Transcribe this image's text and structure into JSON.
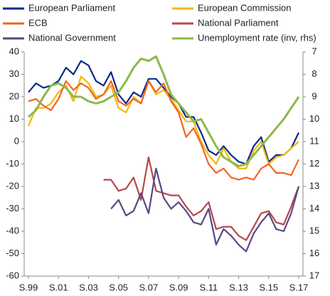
{
  "chart_data": {
    "type": "line",
    "categories": [
      "S.99",
      null,
      null,
      null,
      "S.01",
      null,
      null,
      null,
      "S.03",
      null,
      null,
      null,
      "S.05",
      null,
      null,
      null,
      "S.07",
      null,
      null,
      null,
      "S.09",
      null,
      null,
      null,
      "S.11",
      null,
      null,
      null,
      "S.13",
      null,
      null,
      null,
      "S.15",
      null,
      null,
      null,
      "S.17"
    ],
    "ylim": [
      -60,
      40
    ],
    "yticks": [
      -60,
      -50,
      -40,
      -30,
      -20,
      -10,
      0,
      10,
      20,
      30,
      40
    ],
    "y2lim": [
      17,
      7
    ],
    "y2ticks": [
      7,
      8,
      9,
      10,
      11,
      12,
      13,
      14,
      15,
      16,
      17
    ],
    "series": [
      {
        "name": "European Parliament",
        "color": "#0b2a8c",
        "values": [
          22,
          26,
          24,
          25,
          27,
          33,
          30,
          36,
          34,
          27,
          25,
          31,
          21,
          17,
          22,
          20,
          28,
          28,
          24,
          20,
          17,
          11,
          11,
          4,
          -4,
          -6,
          -2,
          -6,
          -9,
          -10,
          -2,
          2,
          -9,
          -6,
          -6,
          -3,
          4
        ]
      },
      {
        "name": "European Commission",
        "color": "#f5b800",
        "values": [
          7,
          15,
          15,
          17,
          22,
          25,
          18,
          29,
          26,
          20,
          21,
          25,
          15,
          13,
          20,
          17,
          27,
          21,
          23,
          19,
          14,
          9,
          9,
          0,
          -6,
          -10,
          -3,
          -9,
          -12,
          -12,
          -4,
          0,
          -10,
          -7,
          -6,
          -3,
          0
        ]
      },
      {
        "name": "ECB",
        "color": "#f26522",
        "values": [
          18,
          19,
          16,
          14,
          19,
          27,
          23,
          26,
          24,
          19,
          21,
          27,
          18,
          16,
          19,
          17,
          27,
          22,
          26,
          18,
          13,
          2,
          6,
          -1,
          -10,
          -14,
          -12,
          -16,
          -17,
          -16,
          -17,
          -12,
          -10,
          -14,
          -14,
          -15,
          -8
        ]
      },
      {
        "name": "National Parliament",
        "color": "#b5474b",
        "values": [
          null,
          null,
          null,
          null,
          null,
          null,
          null,
          null,
          null,
          null,
          -17,
          -17,
          -22,
          -21,
          -16,
          -26,
          -7,
          -22,
          -23,
          -24,
          -24,
          -29,
          -33,
          -31,
          -27,
          -39,
          -38,
          -38,
          -42,
          -44,
          -38,
          -32,
          -31,
          -36,
          -37,
          -29,
          -20
        ]
      },
      {
        "name": "National Government",
        "color": "#5a4785",
        "values": [
          null,
          null,
          null,
          null,
          null,
          null,
          null,
          null,
          null,
          null,
          null,
          -30,
          -26,
          -33,
          -31,
          -23,
          -32,
          -12,
          -25,
          -30,
          -27,
          -31,
          -36,
          -37,
          -30,
          -46,
          -39,
          -42,
          -46,
          -49,
          -41,
          -36,
          -32,
          -39,
          -40,
          -32,
          -20
        ]
      },
      {
        "name": "Unemployment rate (inv, rhs)",
        "color": "#8db94a",
        "axis": "y2",
        "values": [
          9.9,
          9.6,
          9.0,
          8.5,
          8.4,
          8.6,
          9.0,
          9.0,
          9.2,
          9.3,
          9.2,
          9.0,
          8.8,
          8.3,
          7.7,
          7.3,
          7.4,
          7.2,
          8.0,
          8.9,
          9.3,
          9.7,
          10.1,
          10.0,
          10.6,
          11.2,
          11.7,
          11.9,
          12.1,
          12.0,
          11.6,
          11.2,
          10.8,
          10.4,
          10.0,
          9.5,
          9.0
        ]
      }
    ]
  }
}
